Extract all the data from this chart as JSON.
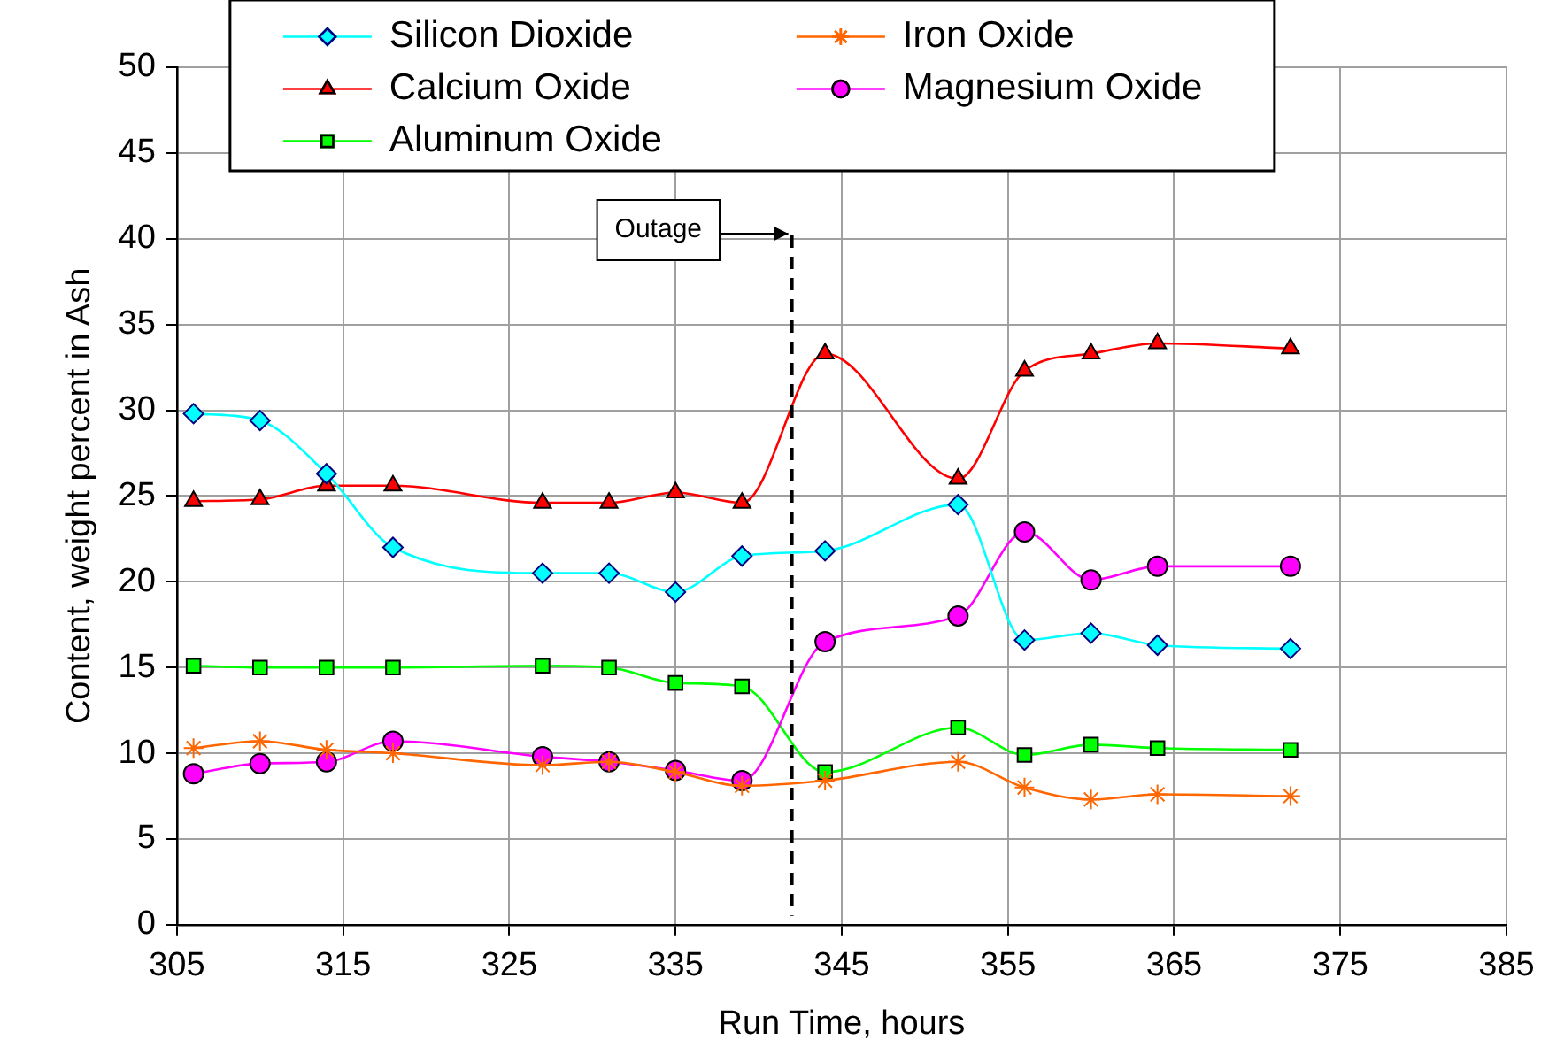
{
  "chart_data": {
    "type": "line",
    "xlabel": "Run Time, hours",
    "ylabel": "Content, weight percent in Ash",
    "x": [
      306,
      310,
      314,
      318,
      327,
      331,
      335,
      339,
      344,
      352,
      356,
      360,
      364,
      372
    ],
    "xlim": [
      305,
      385
    ],
    "xticks": [
      305,
      315,
      325,
      335,
      345,
      355,
      365,
      375,
      385
    ],
    "ylim": [
      0,
      50
    ],
    "yticks": [
      0,
      5,
      10,
      15,
      20,
      25,
      30,
      35,
      40,
      45,
      50
    ],
    "grid": true,
    "legend": "top",
    "series": [
      {
        "name": "Silicon Dioxide",
        "color": "#00ffff",
        "marker": "diamond",
        "values": [
          29.8,
          29.4,
          26.3,
          22.0,
          20.5,
          20.5,
          19.4,
          21.5,
          21.8,
          24.5,
          16.6,
          17.0,
          16.3,
          16.1
        ]
      },
      {
        "name": "Iron Oxide",
        "color": "#ff6600",
        "marker": "cross",
        "values": [
          10.3,
          10.7,
          10.2,
          10.0,
          9.3,
          9.5,
          8.9,
          8.1,
          8.4,
          9.5,
          8.0,
          7.3,
          7.6,
          7.5
        ]
      },
      {
        "name": "Calcium Oxide",
        "color": "#ff0000",
        "marker": "triangle",
        "values": [
          24.7,
          24.8,
          25.6,
          25.6,
          24.6,
          24.6,
          25.2,
          24.6,
          33.3,
          26.0,
          32.3,
          33.3,
          33.9,
          33.6
        ]
      },
      {
        "name": "Magnesium Oxide",
        "color": "#ff00ff",
        "marker": "circle",
        "values": [
          8.8,
          9.4,
          9.5,
          10.7,
          9.8,
          9.5,
          9.0,
          8.4,
          16.5,
          18.0,
          22.9,
          20.1,
          20.9,
          20.9
        ]
      },
      {
        "name": "Aluminum Oxide",
        "color": "#00ff00",
        "marker": "square",
        "values": [
          15.1,
          15.0,
          15.0,
          15.0,
          15.1,
          15.0,
          14.1,
          13.9,
          8.9,
          11.5,
          9.9,
          10.5,
          10.3,
          10.2
        ]
      }
    ],
    "ref_lines": [
      {
        "axis": "x",
        "value": 342,
        "label": "Outage",
        "color": "#000000",
        "line_style": "dashed"
      }
    ]
  }
}
